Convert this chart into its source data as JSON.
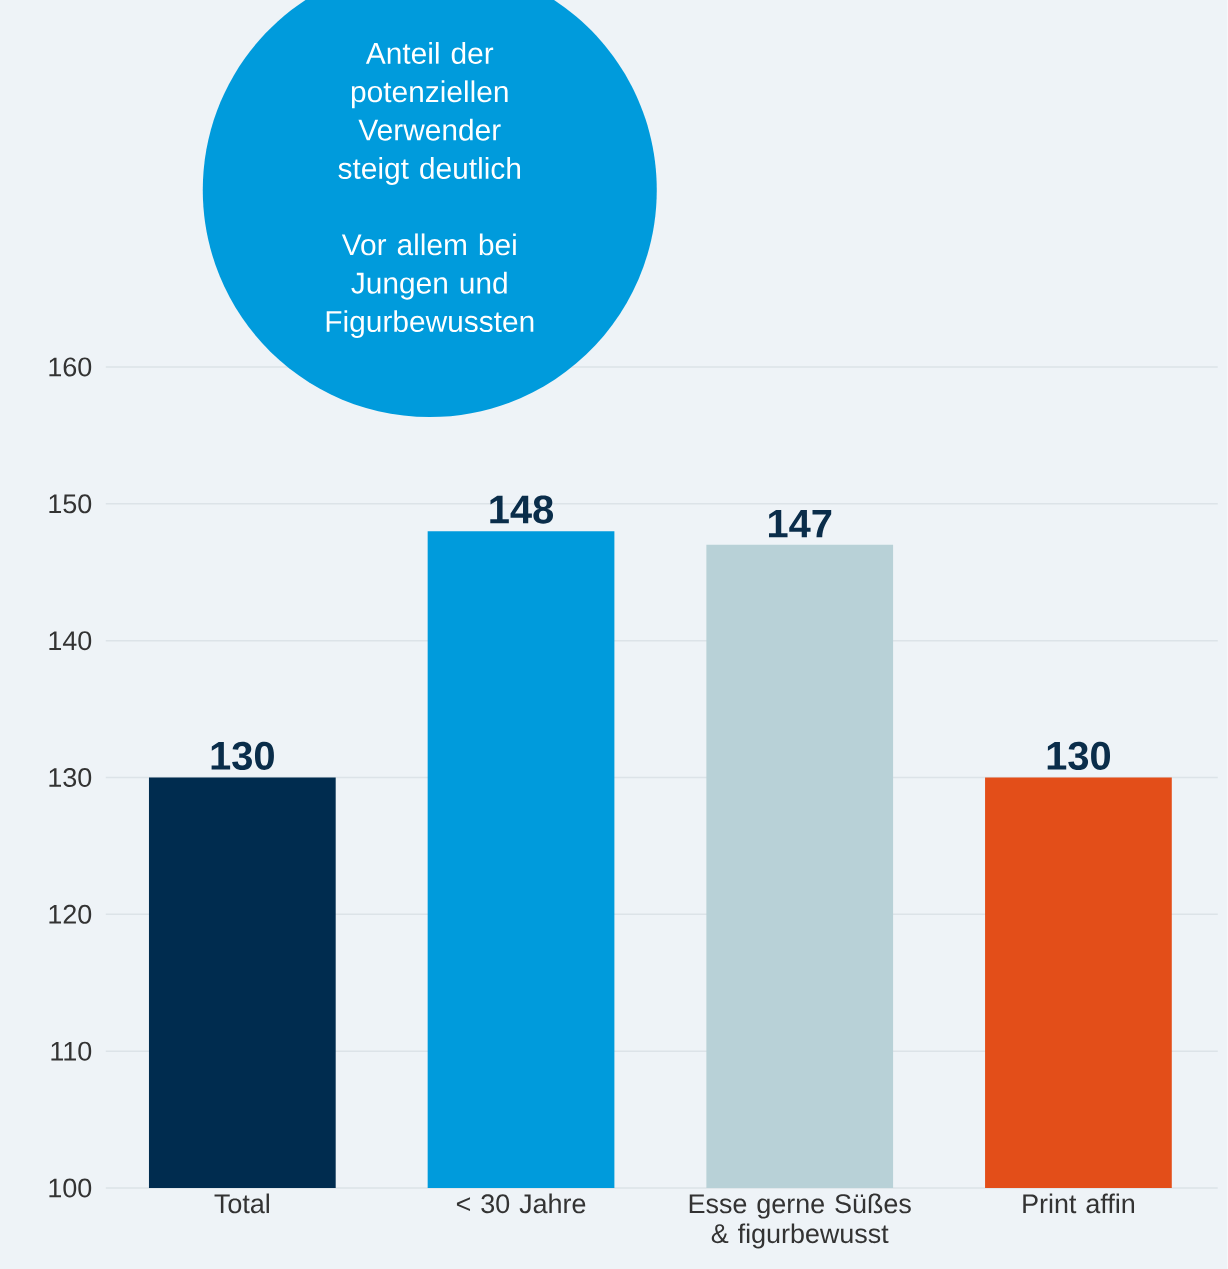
{
  "chart_data": {
    "type": "bar",
    "categories": [
      "Total",
      "< 30 Jahre",
      "Esse gerne Süßes & figurbewusst",
      "Print affin"
    ],
    "values": [
      130,
      148,
      147,
      130
    ],
    "colors": [
      "#002c4f",
      "#009bdc",
      "#b8d1d7",
      "#e34e19"
    ],
    "ylim": [
      100,
      160
    ],
    "yticks": [
      100,
      110,
      120,
      130,
      140,
      150,
      160
    ],
    "grid": "y",
    "data_labels": true,
    "annotations": [
      "Anteil der potenziellen Verwender steigt deutlich",
      "Vor allem bei Jungen und Figurbewussten"
    ]
  }
}
